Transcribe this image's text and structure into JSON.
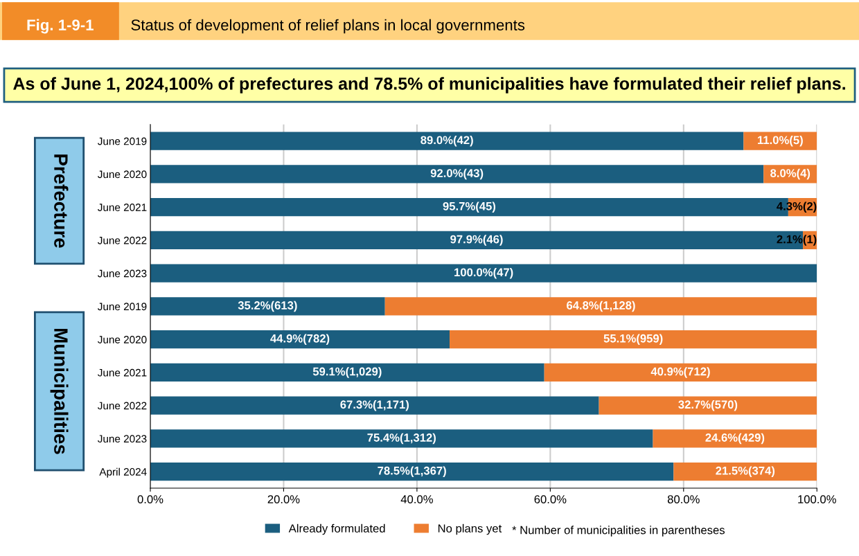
{
  "chart_data": {
    "type": "bar",
    "orientation": "horizontal",
    "stacked": true,
    "title": "Status of development of relief plans in local governments",
    "subtitle": "As of June 1, 2024,100% of prefectures and 78.5% of municipalities have formulated their relief plans.",
    "annotations": [
      "Fig. 1-9-1",
      "Prefecture",
      "Municipalities",
      "* Number of municipalities in parentheses"
    ],
    "categories": [
      "June 2019",
      "June 2020",
      "June 2021",
      "June 2022",
      "June 2023",
      "June 2019",
      "June 2020",
      "June 2021",
      "June 2022",
      "June 2023",
      "April 2024"
    ],
    "series": [
      {
        "name": "Already formulated",
        "color": "#1b5e7f",
        "values": [
          89.0,
          92.0,
          95.7,
          97.9,
          100.0,
          35.2,
          44.9,
          59.1,
          67.3,
          75.4,
          78.5
        ],
        "value_labels": [
          "89.0%(42)",
          "92.0%(43)",
          "95.7%(45)",
          "97.9%(46)",
          "100.0%(47)",
          "35.2%(613)",
          "44.9%(782)",
          "59.1%(1,029)",
          "67.3%(1,171)",
          "75.4%(1,312)",
          "78.5%(1,367)"
        ]
      },
      {
        "name": "No plans yet",
        "color": "#ed7d31",
        "values": [
          11.0,
          8.0,
          4.3,
          2.1,
          0.0,
          64.8,
          55.1,
          40.9,
          32.7,
          24.6,
          21.5
        ],
        "value_labels": [
          "11.0%(5)",
          "8.0%(4)",
          "4.3%(2)",
          "2.1%(1)",
          null,
          "64.8%(1,128)",
          "55.1%(959)",
          "40.9%(712)",
          "32.7%(570)",
          "24.6%(429)",
          "21.5%(374)"
        ]
      }
    ],
    "xlim": [
      0,
      100
    ],
    "xticks": [
      {
        "value": 0,
        "label": "0.0%"
      },
      {
        "value": 20,
        "label": "20.0%"
      },
      {
        "value": 40,
        "label": "40.0%"
      },
      {
        "value": 60,
        "label": "60.0%"
      },
      {
        "value": 80,
        "label": "80.0%"
      },
      {
        "value": 100,
        "label": "100.0%"
      }
    ],
    "grid": "x",
    "legend": "bottom"
  }
}
